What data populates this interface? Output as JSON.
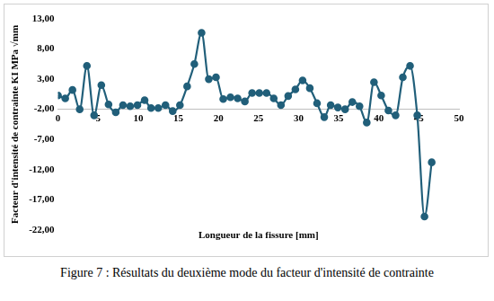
{
  "chart_data": {
    "type": "line",
    "caption": "Figure 7 : Résultats du deuxième mode du facteur d'intensité de contrainte",
    "x_label": "Longueur de la fissure [mm]",
    "y_label": "Facteur d'intensité de contrainte KI MPa √mm",
    "x": [
      0,
      0.9,
      1.8,
      2.7,
      3.6,
      4.5,
      5.4,
      6.3,
      7.2,
      8.1,
      9.0,
      9.9,
      10.8,
      11.6,
      12.5,
      13.4,
      14.3,
      15.2,
      16.1,
      17.0,
      17.9,
      18.8,
      19.7,
      20.6,
      21.5,
      22.4,
      23.3,
      24.2,
      25.1,
      26.0,
      26.9,
      27.8,
      28.7,
      29.6,
      30.5,
      31.4,
      32.3,
      33.2,
      34.0,
      34.9,
      35.8,
      36.7,
      37.6,
      38.5,
      39.4,
      40.3,
      41.2,
      42.1,
      43.0,
      43.9,
      44.8,
      45.7,
      46.6
    ],
    "values": [
      0.3,
      -0.2,
      1.2,
      -2.0,
      5.2,
      -3.0,
      2.0,
      -1.2,
      -2.5,
      -1.3,
      -1.5,
      -1.3,
      -0.5,
      -1.8,
      -1.8,
      -1.3,
      -2.3,
      -1.3,
      1.8,
      5.5,
      10.7,
      3.0,
      3.3,
      -0.3,
      0,
      -0.2,
      -0.7,
      0.7,
      0.7,
      0.7,
      -0.2,
      -1.3,
      0.2,
      1.3,
      2.8,
      1.5,
      -1.0,
      -3.3,
      -1.3,
      -1.7,
      -2.0,
      -0.8,
      -1.5,
      -4.2,
      2.5,
      0.3,
      -2.2,
      -3.0,
      3.3,
      5.2,
      -3.0,
      -19.8,
      -10.8
    ],
    "color": "#215f7a",
    "marker": "circle",
    "line_style": "solid",
    "xlim": [
      0,
      50
    ],
    "xticks": [
      0,
      5,
      10,
      15,
      20,
      25,
      30,
      35,
      40,
      45,
      50
    ],
    "ylim": [
      -22,
      13
    ],
    "yticks": [
      {
        "value": -22,
        "label": "-22,00"
      },
      {
        "value": -17,
        "label": "-17,00"
      },
      {
        "value": -12,
        "label": "-12,00"
      },
      {
        "value": -7,
        "label": "-7,00"
      },
      {
        "value": -2,
        "label": "-2,00"
      },
      {
        "value": 3,
        "label": "3,00"
      },
      {
        "value": 8,
        "label": "8,00"
      },
      {
        "value": 13,
        "label": "13,00"
      }
    ],
    "grid": false
  }
}
